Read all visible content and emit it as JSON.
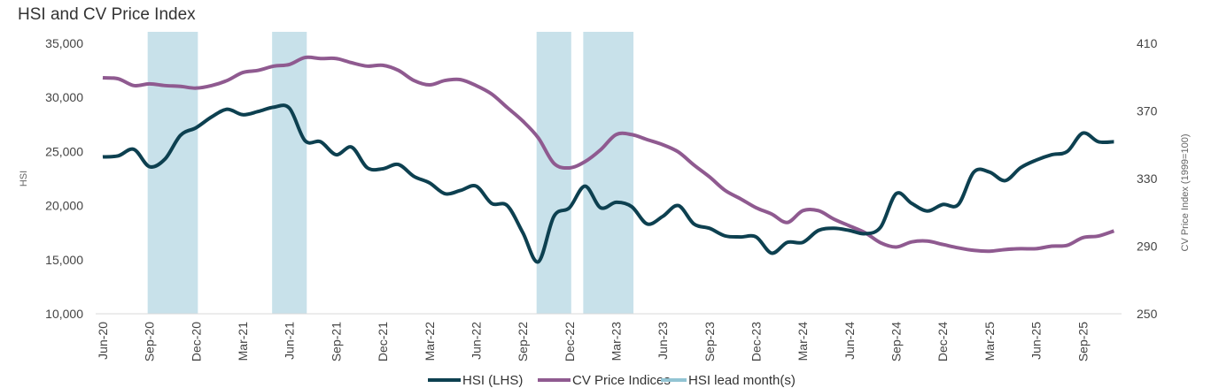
{
  "chart_data": {
    "type": "line",
    "title": "HSI and CV Price Index",
    "x": [
      "Jun-20",
      "Jul-20",
      "Aug-20",
      "Sep-20",
      "Oct-20",
      "Nov-20",
      "Dec-20",
      "Jan-21",
      "Feb-21",
      "Mar-21",
      "Apr-21",
      "May-21",
      "Jun-21",
      "Jul-21",
      "Aug-21",
      "Sep-21",
      "Oct-21",
      "Nov-21",
      "Dec-21",
      "Jan-22",
      "Feb-22",
      "Mar-22",
      "Apr-22",
      "May-22",
      "Jun-22",
      "Jul-22",
      "Aug-22",
      "Sep-22",
      "Oct-22",
      "Nov-22",
      "Dec-22",
      "Jan-23",
      "Feb-23",
      "Mar-23",
      "Apr-23",
      "May-23",
      "Jun-23",
      "Jul-23",
      "Aug-23",
      "Sep-23",
      "Oct-23",
      "Nov-23",
      "Dec-23",
      "Jan-24",
      "Feb-24",
      "Mar-24",
      "Apr-24",
      "May-24",
      "Jun-24",
      "Jul-24",
      "Aug-24",
      "Sep-24",
      "Oct-24",
      "Nov-24",
      "Dec-24",
      "Jan-25",
      "Feb-25",
      "Mar-25",
      "Apr-25",
      "May-25",
      "Jun-25",
      "Jul-25",
      "Aug-25",
      "Sep-25",
      "Oct-25",
      "Nov-25"
    ],
    "x_tick_labels": [
      "Jun-20",
      "Sep-20",
      "Dec-20",
      "Mar-21",
      "Jun-21",
      "Sep-21",
      "Dec-21",
      "Mar-22",
      "Jun-22",
      "Sep-22",
      "Dec-22",
      "Mar-23",
      "Jun-23",
      "Sep-23",
      "Dec-23",
      "Mar-24",
      "Jun-24",
      "Sep-24",
      "Dec-24",
      "Mar-25",
      "Jun-25",
      "Sep-25"
    ],
    "ylabel": "HSI",
    "ylim": [
      10000,
      35000
    ],
    "y_ticks": [
      "10,000",
      "15,000",
      "20,000",
      "25,000",
      "30,000",
      "35,000"
    ],
    "y2label": "CV Price Index (1999=100)",
    "y2lim": [
      250,
      410
    ],
    "y2_ticks": [
      "250",
      "290",
      "330",
      "370",
      "410"
    ],
    "grid": false,
    "legend_position": "bottom",
    "series": [
      {
        "name": "HSI (LHS)",
        "axis": "left",
        "color": "#0d4050",
        "values": [
          24500,
          24600,
          25200,
          23600,
          24300,
          26500,
          27200,
          28200,
          28900,
          28400,
          28700,
          29100,
          29000,
          26000,
          25900,
          24700,
          25400,
          23500,
          23400,
          23800,
          22700,
          22100,
          21100,
          21400,
          21800,
          20200,
          20000,
          17500,
          14800,
          19000,
          19800,
          21800,
          19800,
          20300,
          19900,
          18300,
          19000,
          20000,
          18300,
          17900,
          17200,
          17100,
          17100,
          15600,
          16600,
          16600,
          17700,
          17900,
          17700,
          17400,
          18000,
          21100,
          20200,
          19500,
          20100,
          20100,
          23100,
          23100,
          22300,
          23500,
          24200,
          24700,
          25000,
          26700,
          25900,
          25900
        ]
      },
      {
        "name": "CV Price Indices",
        "axis": "right",
        "color": "#8f5a90",
        "values": [
          389.6,
          389,
          385,
          386,
          385,
          384.5,
          383.5,
          385,
          388,
          392.7,
          394,
          396.5,
          397.5,
          401.6,
          401,
          401,
          398.5,
          396.5,
          397,
          394,
          388,
          385.4,
          388,
          388.5,
          385,
          380,
          372,
          364,
          354,
          339,
          336.3,
          340,
          347,
          356,
          356,
          353,
          350,
          345.7,
          338,
          331,
          323,
          318,
          312.7,
          309,
          304,
          311,
          311,
          306,
          302,
          298,
          292,
          289.5,
          292.5,
          293,
          291,
          289,
          287.5,
          287,
          288,
          288.5,
          288.5,
          290,
          290.5,
          295,
          296,
          299
        ]
      }
    ],
    "bands": {
      "name": "HSI lead month(s)",
      "color": "#c8e1ea",
      "ranges": [
        [
          "Sep-20",
          "Dec-20"
        ],
        [
          "May-21",
          "Jul-21"
        ],
        [
          "Oct-22",
          "Dec-22"
        ],
        [
          "Jan-23",
          "Apr-23"
        ]
      ]
    }
  }
}
